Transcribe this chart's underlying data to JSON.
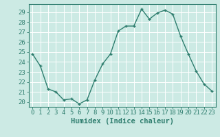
{
  "x": [
    0,
    1,
    2,
    3,
    4,
    5,
    6,
    7,
    8,
    9,
    10,
    11,
    12,
    13,
    14,
    15,
    16,
    17,
    18,
    19,
    20,
    21,
    22,
    23
  ],
  "y": [
    24.8,
    23.6,
    21.3,
    21.0,
    20.2,
    20.3,
    19.8,
    20.2,
    22.2,
    23.8,
    24.8,
    27.1,
    27.6,
    27.6,
    29.3,
    28.3,
    28.9,
    29.2,
    28.8,
    26.6,
    24.8,
    23.1,
    21.8,
    21.1
  ],
  "line_color": "#2e7d6e",
  "marker": "+",
  "bg_color": "#cceae4",
  "grid_color": "#ffffff",
  "xlabel": "Humidex (Indice chaleur)",
  "ylim": [
    19.5,
    29.8
  ],
  "xlim": [
    -0.5,
    23.5
  ],
  "yticks": [
    20,
    21,
    22,
    23,
    24,
    25,
    26,
    27,
    28,
    29
  ],
  "xticks": [
    0,
    1,
    2,
    3,
    4,
    5,
    6,
    7,
    8,
    9,
    10,
    11,
    12,
    13,
    14,
    15,
    16,
    17,
    18,
    19,
    20,
    21,
    22,
    23
  ],
  "tick_label_fontsize": 6.5,
  "xlabel_fontsize": 7.5,
  "line_width": 1.0,
  "marker_size": 3.5
}
